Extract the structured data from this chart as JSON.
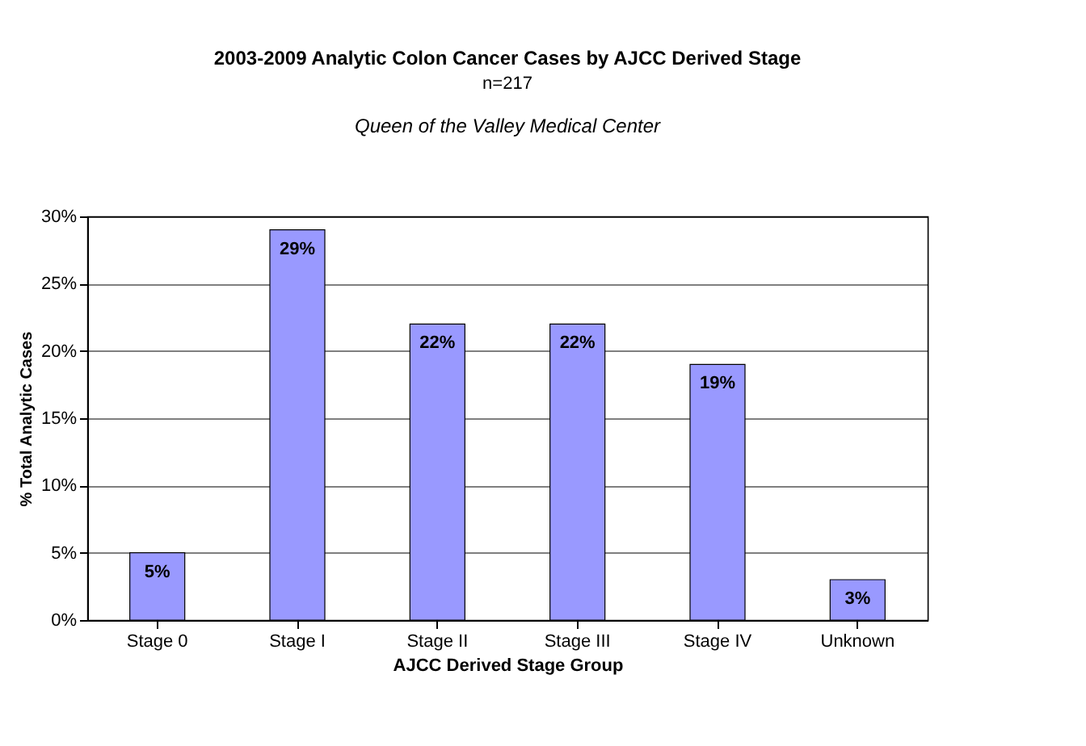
{
  "chart_data": {
    "type": "bar",
    "title": "2003-2009 Analytic Colon Cancer Cases by AJCC Derived Stage",
    "subtitle": "n=217",
    "annotations": [
      "Queen of the Valley Medical Center"
    ],
    "xlabel": "AJCC Derived Stage Group",
    "ylabel": "% Total Analytic Cases",
    "categories": [
      "Stage 0",
      "Stage I",
      "Stage II",
      "Stage III",
      "Stage IV",
      "Unknown"
    ],
    "values": [
      5,
      29,
      22,
      22,
      19,
      3
    ],
    "value_labels": [
      "5%",
      "29%",
      "22%",
      "22%",
      "19%",
      "3%"
    ],
    "color": "#9999ff",
    "ylim": [
      0,
      30
    ],
    "yticks": [
      {
        "value": 0,
        "label": "0%"
      },
      {
        "value": 5,
        "label": "5%"
      },
      {
        "value": 10,
        "label": "10%"
      },
      {
        "value": 15,
        "label": "15%"
      },
      {
        "value": 20,
        "label": "20%"
      },
      {
        "value": 25,
        "label": "25%"
      },
      {
        "value": 30,
        "label": "30%"
      }
    ],
    "grid": "y"
  }
}
